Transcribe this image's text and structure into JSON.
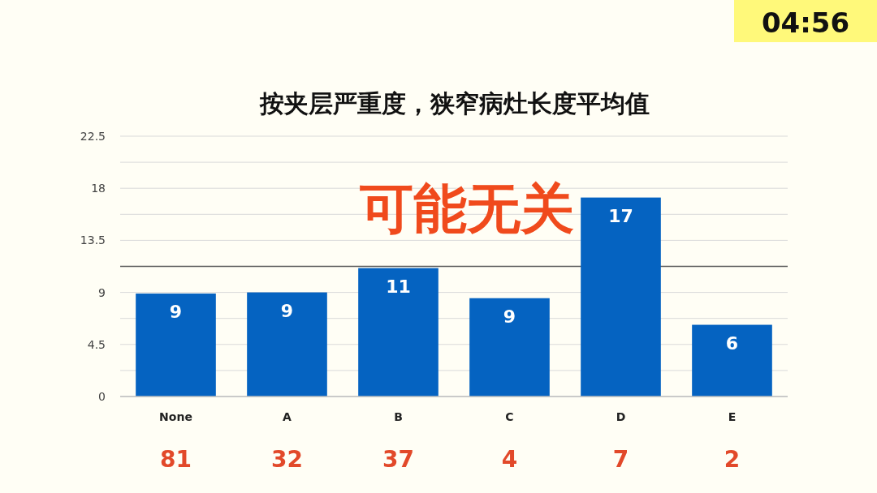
{
  "chart_data": {
    "type": "bar",
    "title": "按夹层严重度，狭窄病灶长度平均值",
    "categories": [
      "None",
      "A",
      "B",
      "C",
      "D",
      "E"
    ],
    "values": [
      8.9,
      9.0,
      11.1,
      8.5,
      17.2,
      6.2
    ],
    "value_labels": [
      "9",
      "9",
      "11",
      "9",
      "17",
      "6"
    ],
    "color": "#0563c1",
    "ylim": [
      0,
      22.5
    ],
    "yticks": [
      0,
      {
        "value": 2.25,
        "label": null
      },
      4.5,
      {
        "value": 6.75,
        "label": null
      },
      9,
      {
        "value": 11.25,
        "label": null
      },
      13.5,
      {
        "value": 15.75,
        "label": null
      },
      18,
      {
        "value": 20.25,
        "label": null
      },
      22.5
    ],
    "grid": "y",
    "ref_lines": [
      {
        "axis": "y",
        "value": 11.25,
        "color": "#595959"
      }
    ],
    "annotations": [
      "04:56",
      "可能无关",
      "81",
      "32",
      "37",
      "4",
      "7",
      "2"
    ]
  }
}
